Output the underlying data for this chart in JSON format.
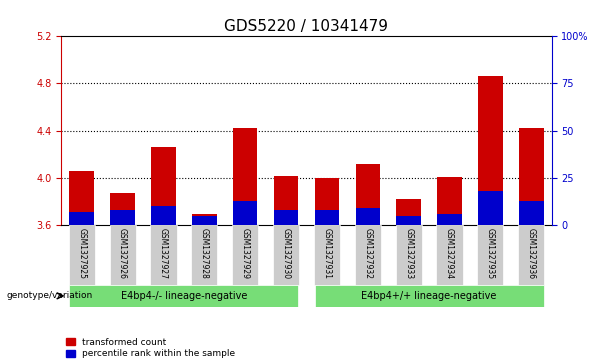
{
  "title": "GDS5220 / 10341479",
  "samples": [
    "GSM1327925",
    "GSM1327926",
    "GSM1327927",
    "GSM1327928",
    "GSM1327929",
    "GSM1327930",
    "GSM1327931",
    "GSM1327932",
    "GSM1327933",
    "GSM1327934",
    "GSM1327935",
    "GSM1327936"
  ],
  "transformed_count": [
    4.06,
    3.87,
    4.26,
    3.69,
    4.42,
    4.02,
    4.0,
    4.12,
    3.82,
    4.01,
    4.86,
    4.42
  ],
  "percentile_rank": [
    7,
    8,
    10,
    5,
    13,
    8,
    8,
    9,
    5,
    6,
    18,
    13
  ],
  "y_min": 3.6,
  "y_max": 5.2,
  "y_ticks_left": [
    3.6,
    4.0,
    4.4,
    4.8,
    5.2
  ],
  "y_ticks_right_vals": [
    0,
    25,
    50,
    75,
    100
  ],
  "y_ticks_right_labels": [
    "0",
    "25",
    "50",
    "75",
    "100%"
  ],
  "bar_color_red": "#cc0000",
  "bar_color_blue": "#0000cc",
  "group1_label": "E4bp4-/- lineage-negative",
  "group2_label": "E4bp4+/+ lineage-negative",
  "group1_indices": [
    0,
    1,
    2,
    3,
    4,
    5
  ],
  "group2_indices": [
    6,
    7,
    8,
    9,
    10,
    11
  ],
  "group_color": "#77dd77",
  "genotype_label": "genotype/variation",
  "legend_red": "transformed count",
  "legend_blue": "percentile rank within the sample",
  "bar_width": 0.6,
  "bg_color_xticklabels": "#cccccc",
  "title_fontsize": 11,
  "tick_label_fontsize": 7
}
